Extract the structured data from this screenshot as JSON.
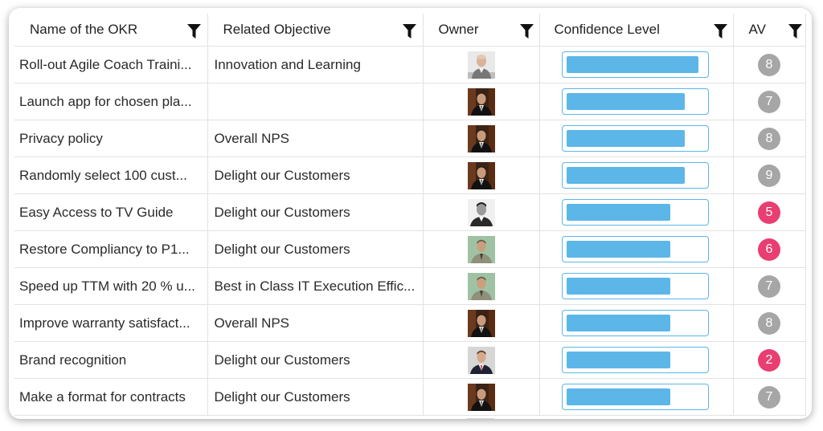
{
  "columns": {
    "name": "Name of the OKR",
    "objective": "Related Objective",
    "owner": "Owner",
    "confidence": "Confidence Level",
    "av": "AV"
  },
  "colors": {
    "bar": "#5cb6e8",
    "bar_border": "#5ab7e8",
    "av_grey": "#a6a6a6",
    "av_pink": "#e83e72"
  },
  "rows": [
    {
      "name": "Roll-out Agile Coach Traini...",
      "objective": "Innovation and Learning",
      "avatar": "bald-man",
      "confidence": 0.96,
      "av": "8",
      "av_color": "grey"
    },
    {
      "name": "Launch app for chosen pla...",
      "objective": "",
      "avatar": "dark-suit-man",
      "confidence": 0.86,
      "av": "7",
      "av_color": "grey"
    },
    {
      "name": "Privacy policy",
      "objective": "Overall NPS",
      "avatar": "dark-suit-man",
      "confidence": 0.86,
      "av": "8",
      "av_color": "grey"
    },
    {
      "name": "Randomly select 100 cust...",
      "objective": "Delight our Customers",
      "avatar": "dark-suit-man",
      "confidence": 0.86,
      "av": "9",
      "av_color": "grey"
    },
    {
      "name": "Easy Access to TV Guide",
      "objective": "Delight our Customers",
      "avatar": "bw-man",
      "confidence": 0.76,
      "av": "5",
      "av_color": "pink"
    },
    {
      "name": "Restore Compliancy to P1...",
      "objective": "Delight our Customers",
      "avatar": "green-bg-man",
      "confidence": 0.76,
      "av": "6",
      "av_color": "pink"
    },
    {
      "name": "Speed up TTM with 20 % u...",
      "objective": "Best in Class IT Execution Effic...",
      "avatar": "green-bg-man",
      "confidence": 0.76,
      "av": "7",
      "av_color": "grey"
    },
    {
      "name": "Improve warranty satisfact...",
      "objective": "Overall NPS",
      "avatar": "dark-suit-man",
      "confidence": 0.76,
      "av": "8",
      "av_color": "grey"
    },
    {
      "name": "Brand recognition",
      "objective": "Delight our Customers",
      "avatar": "red-tie-man",
      "confidence": 0.76,
      "av": "2",
      "av_color": "pink"
    },
    {
      "name": "Make a format for contracts",
      "objective": "Delight our Customers",
      "avatar": "dark-suit-man",
      "confidence": 0.76,
      "av": "7",
      "av_color": "grey"
    }
  ]
}
